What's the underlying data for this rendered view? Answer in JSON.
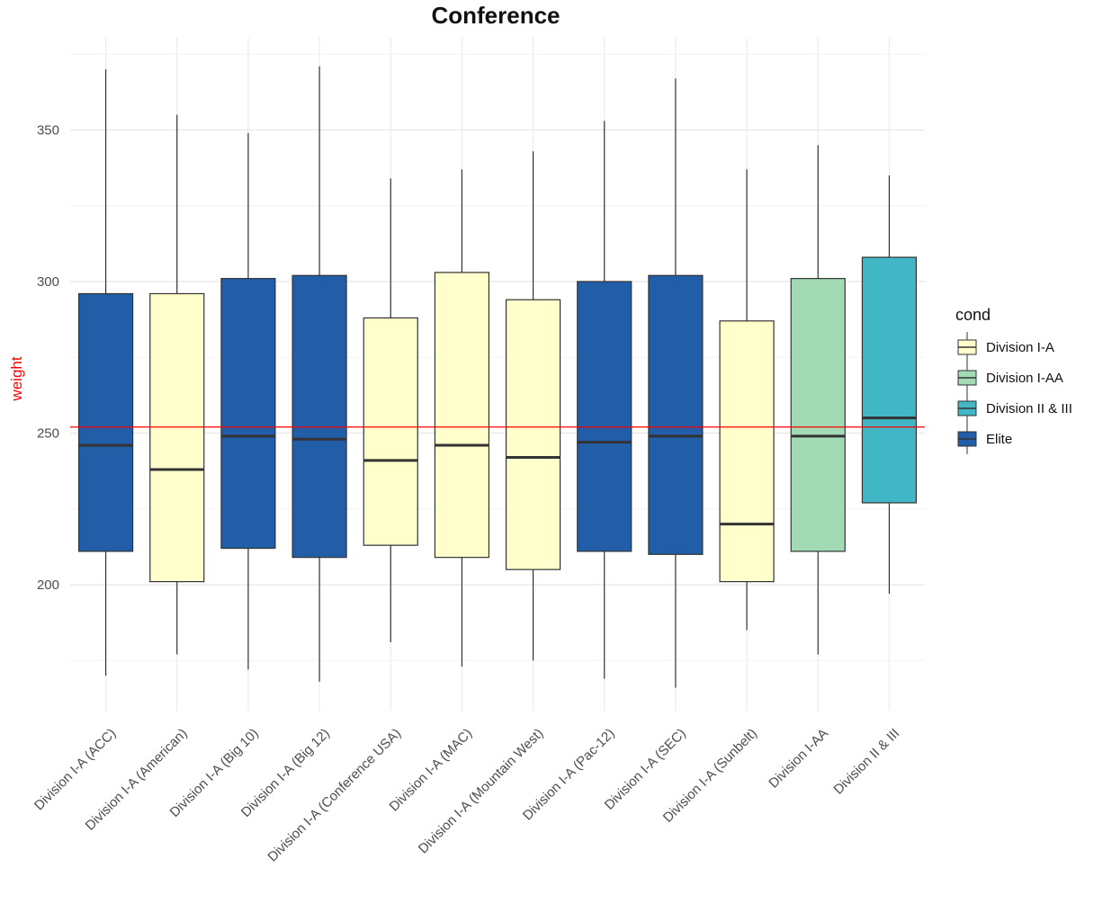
{
  "chart_data": {
    "type": "boxplot",
    "title": "Conference",
    "xlabel": "",
    "ylabel": "weight",
    "ylabel_color": "#ff0000",
    "ylim": [
      158,
      380
    ],
    "yticks": [
      200,
      250,
      300,
      350
    ],
    "grid": true,
    "reference_line": {
      "y": 252,
      "color": "#ff0000"
    },
    "legend": {
      "title": "cond",
      "placement": "right",
      "entries": [
        {
          "label": "Division I-A",
          "color": "#ffffcc"
        },
        {
          "label": "Division I-AA",
          "color": "#a1dab4"
        },
        {
          "label": "Division II & III",
          "color": "#41b6c4"
        },
        {
          "label": "Elite",
          "color": "#225ea8"
        }
      ]
    },
    "categories": [
      "Division I-A (ACC)",
      "Division I-A (American)",
      "Division I-A (Big 10)",
      "Division I-A (Big 12)",
      "Division I-A (Conference USA)",
      "Division I-A (MAC)",
      "Division I-A (Mountain West)",
      "Division I-A (Pac-12)",
      "Division I-A (SEC)",
      "Division I-A (Sunbelt)",
      "Division I-AA",
      "Division II & III"
    ],
    "boxes": [
      {
        "group": "Elite",
        "min": 170,
        "q1": 211,
        "median": 246,
        "q3": 296,
        "max": 370
      },
      {
        "group": "Division I-A",
        "min": 177,
        "q1": 201,
        "median": 238,
        "q3": 296,
        "max": 355
      },
      {
        "group": "Elite",
        "min": 172,
        "q1": 212,
        "median": 249,
        "q3": 301,
        "max": 349
      },
      {
        "group": "Elite",
        "min": 168,
        "q1": 209,
        "median": 248,
        "q3": 302,
        "max": 371
      },
      {
        "group": "Division I-A",
        "min": 181,
        "q1": 213,
        "median": 241,
        "q3": 288,
        "max": 334
      },
      {
        "group": "Division I-A",
        "min": 173,
        "q1": 209,
        "median": 246,
        "q3": 303,
        "max": 337
      },
      {
        "group": "Division I-A",
        "min": 175,
        "q1": 205,
        "median": 242,
        "q3": 294,
        "max": 343
      },
      {
        "group": "Elite",
        "min": 169,
        "q1": 211,
        "median": 247,
        "q3": 300,
        "max": 353
      },
      {
        "group": "Elite",
        "min": 166,
        "q1": 210,
        "median": 249,
        "q3": 302,
        "max": 367
      },
      {
        "group": "Division I-A",
        "min": 185,
        "q1": 201,
        "median": 220,
        "q3": 287,
        "max": 337
      },
      {
        "group": "Division I-AA",
        "min": 177,
        "q1": 211,
        "median": 249,
        "q3": 301,
        "max": 345
      },
      {
        "group": "Division II & III",
        "min": 197,
        "q1": 227,
        "median": 255,
        "q3": 308,
        "max": 335
      }
    ]
  }
}
